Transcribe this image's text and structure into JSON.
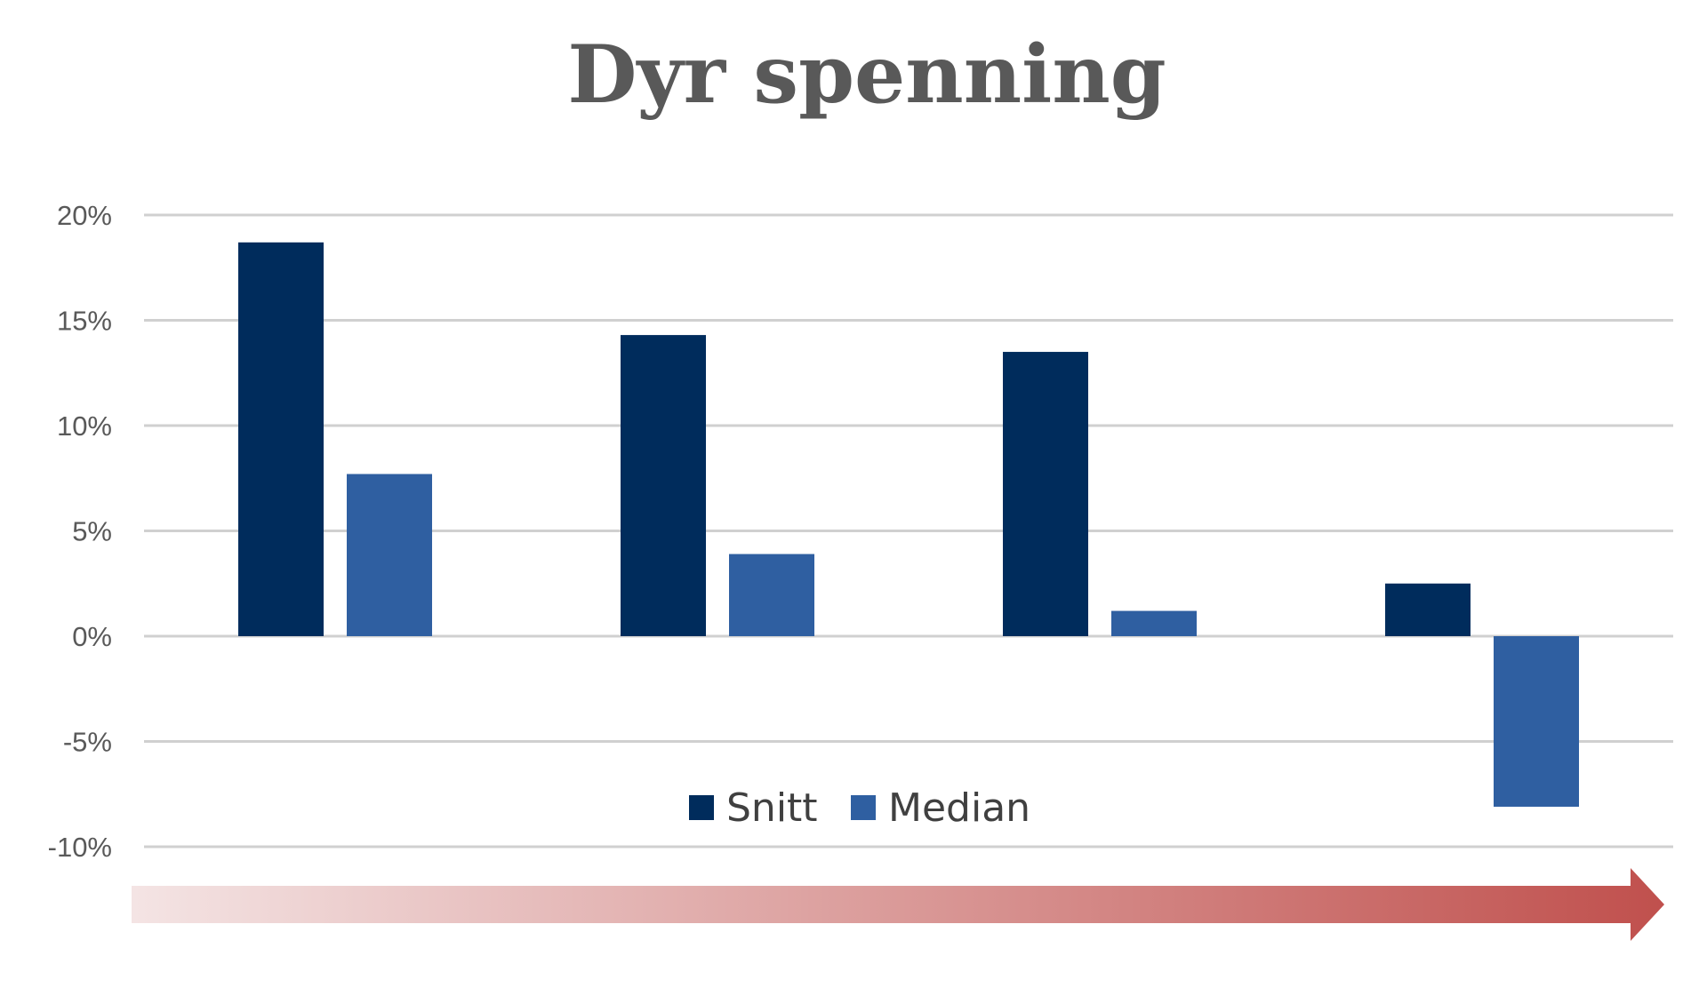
{
  "title": "Dyr spenning",
  "colors": {
    "series_snitt": "#002c5c",
    "series_median": "#2f5fa1",
    "gridline": "#d0d0d0",
    "axis_text": "#595959",
    "arrow_start": "#f4e4e4",
    "arrow_end": "#c0504d"
  },
  "legend": {
    "position": "bottom-center-inside",
    "items": [
      {
        "label": "Snitt",
        "color": "#002c5c"
      },
      {
        "label": "Median",
        "color": "#2f5fa1"
      }
    ]
  },
  "arrow": {
    "direction": "right",
    "gradient": "light-pink-to-red"
  },
  "chart_data": {
    "type": "bar",
    "title": "Dyr spenning",
    "xlabel": "",
    "ylabel": "",
    "categories": [
      "",
      "",
      "",
      ""
    ],
    "series": [
      {
        "name": "Snitt",
        "values": [
          18.7,
          14.3,
          13.5,
          2.5
        ]
      },
      {
        "name": "Median",
        "values": [
          7.7,
          3.9,
          1.2,
          -8.1
        ]
      }
    ],
    "ylim": [
      -10,
      20
    ],
    "yticks": [
      20,
      15,
      10,
      5,
      0,
      -5,
      -10
    ],
    "ytick_labels": [
      "20%",
      "15%",
      "10%",
      "5%",
      "0%",
      "-5%",
      "-10%"
    ],
    "grid": true,
    "legend_position": "bottom-center"
  }
}
